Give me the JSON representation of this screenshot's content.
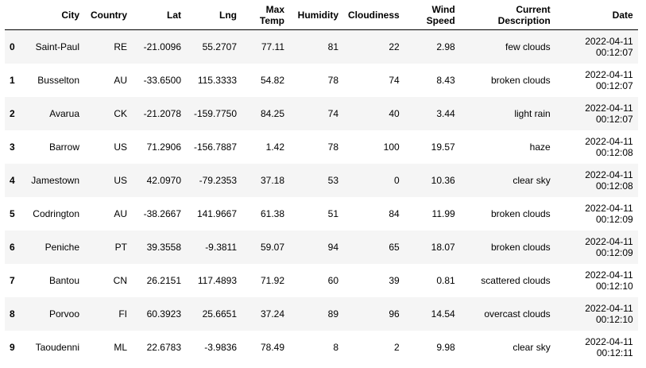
{
  "table": {
    "index_header": "",
    "columns": [
      {
        "key": "City",
        "lines": [
          "City"
        ]
      },
      {
        "key": "Country",
        "lines": [
          "Country"
        ]
      },
      {
        "key": "Lat",
        "lines": [
          "Lat"
        ]
      },
      {
        "key": "Lng",
        "lines": [
          "Lng"
        ]
      },
      {
        "key": "Max Temp",
        "lines": [
          "Max",
          "Temp"
        ]
      },
      {
        "key": "Humidity",
        "lines": [
          "Humidity"
        ]
      },
      {
        "key": "Cloudiness",
        "lines": [
          "Cloudiness"
        ]
      },
      {
        "key": "Wind Speed",
        "lines": [
          "Wind",
          "Speed"
        ]
      },
      {
        "key": "Current Description",
        "lines": [
          "Current",
          "Description"
        ]
      },
      {
        "key": "Date",
        "lines": [
          "Date"
        ]
      }
    ],
    "rows": [
      {
        "index": "0",
        "City": "Saint-Paul",
        "Country": "RE",
        "Lat": "-21.0096",
        "Lng": "55.2707",
        "Max Temp": "77.11",
        "Humidity": "81",
        "Cloudiness": "22",
        "Wind Speed": "2.98",
        "Current Description": "few clouds",
        "Date": [
          "2022-04-11",
          "00:12:07"
        ]
      },
      {
        "index": "1",
        "City": "Busselton",
        "Country": "AU",
        "Lat": "-33.6500",
        "Lng": "115.3333",
        "Max Temp": "54.82",
        "Humidity": "78",
        "Cloudiness": "74",
        "Wind Speed": "8.43",
        "Current Description": "broken clouds",
        "Date": [
          "2022-04-11",
          "00:12:07"
        ]
      },
      {
        "index": "2",
        "City": "Avarua",
        "Country": "CK",
        "Lat": "-21.2078",
        "Lng": "-159.7750",
        "Max Temp": "84.25",
        "Humidity": "74",
        "Cloudiness": "40",
        "Wind Speed": "3.44",
        "Current Description": "light rain",
        "Date": [
          "2022-04-11",
          "00:12:07"
        ]
      },
      {
        "index": "3",
        "City": "Barrow",
        "Country": "US",
        "Lat": "71.2906",
        "Lng": "-156.7887",
        "Max Temp": "1.42",
        "Humidity": "78",
        "Cloudiness": "100",
        "Wind Speed": "19.57",
        "Current Description": "haze",
        "Date": [
          "2022-04-11",
          "00:12:08"
        ]
      },
      {
        "index": "4",
        "City": "Jamestown",
        "Country": "US",
        "Lat": "42.0970",
        "Lng": "-79.2353",
        "Max Temp": "37.18",
        "Humidity": "53",
        "Cloudiness": "0",
        "Wind Speed": "10.36",
        "Current Description": "clear sky",
        "Date": [
          "2022-04-11",
          "00:12:08"
        ]
      },
      {
        "index": "5",
        "City": "Codrington",
        "Country": "AU",
        "Lat": "-38.2667",
        "Lng": "141.9667",
        "Max Temp": "61.38",
        "Humidity": "51",
        "Cloudiness": "84",
        "Wind Speed": "11.99",
        "Current Description": "broken clouds",
        "Date": [
          "2022-04-11",
          "00:12:09"
        ]
      },
      {
        "index": "6",
        "City": "Peniche",
        "Country": "PT",
        "Lat": "39.3558",
        "Lng": "-9.3811",
        "Max Temp": "59.07",
        "Humidity": "94",
        "Cloudiness": "65",
        "Wind Speed": "18.07",
        "Current Description": "broken clouds",
        "Date": [
          "2022-04-11",
          "00:12:09"
        ]
      },
      {
        "index": "7",
        "City": "Bantou",
        "Country": "CN",
        "Lat": "26.2151",
        "Lng": "117.4893",
        "Max Temp": "71.92",
        "Humidity": "60",
        "Cloudiness": "39",
        "Wind Speed": "0.81",
        "Current Description": "scattered clouds",
        "Date": [
          "2022-04-11",
          "00:12:10"
        ]
      },
      {
        "index": "8",
        "City": "Porvoo",
        "Country": "FI",
        "Lat": "60.3923",
        "Lng": "25.6651",
        "Max Temp": "37.24",
        "Humidity": "89",
        "Cloudiness": "96",
        "Wind Speed": "14.54",
        "Current Description": "overcast clouds",
        "Date": [
          "2022-04-11",
          "00:12:10"
        ]
      },
      {
        "index": "9",
        "City": "Taoudenni",
        "Country": "ML",
        "Lat": "22.6783",
        "Lng": "-3.9836",
        "Max Temp": "78.49",
        "Humidity": "8",
        "Cloudiness": "2",
        "Wind Speed": "9.98",
        "Current Description": "clear sky",
        "Date": [
          "2022-04-11",
          "00:12:11"
        ]
      }
    ]
  }
}
